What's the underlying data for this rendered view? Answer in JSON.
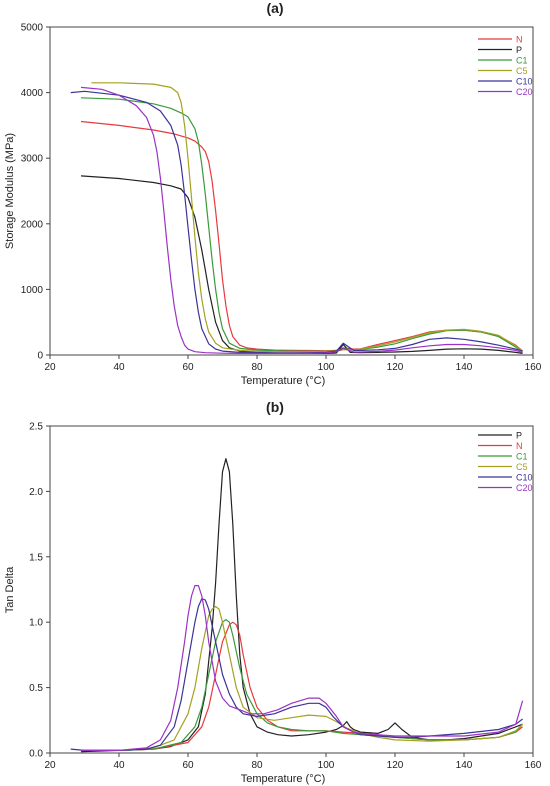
{
  "chart_data": [
    {
      "panel_label": "(a)",
      "type": "line",
      "xlabel": "Temperature (°C)",
      "ylabel": "Storage Modulus (MPa)",
      "xlim": [
        20,
        160
      ],
      "ylim": [
        0,
        5000
      ],
      "xticks": [
        20,
        40,
        60,
        80,
        100,
        120,
        140,
        160
      ],
      "yticks": [
        0,
        1000,
        2000,
        3000,
        4000,
        5000
      ],
      "grid": false,
      "legend_position": "top-right",
      "series": [
        {
          "name": "N",
          "color": "#e8393d",
          "x": [
            29,
            40,
            50,
            56,
            60,
            62,
            64,
            65,
            66,
            67,
            68,
            69,
            70,
            71,
            72,
            73,
            75,
            77,
            80,
            85,
            90,
            95,
            100,
            103,
            105,
            108,
            110,
            115,
            120,
            125,
            130,
            135,
            140,
            145,
            150,
            155,
            157
          ],
          "y": [
            3560,
            3500,
            3430,
            3370,
            3310,
            3260,
            3170,
            3100,
            2950,
            2650,
            2200,
            1700,
            1150,
            750,
            450,
            280,
            150,
            110,
            90,
            75,
            70,
            68,
            66,
            70,
            110,
            90,
            95,
            160,
            220,
            280,
            350,
            380,
            380,
            350,
            290,
            150,
            60
          ]
        },
        {
          "name": "P",
          "color": "#222222",
          "x": [
            29,
            40,
            50,
            55,
            58,
            60,
            62,
            64,
            66,
            68,
            70,
            72,
            75,
            80,
            85,
            90,
            95,
            100,
            103,
            105,
            107,
            110,
            115,
            120,
            125,
            130,
            135,
            140,
            145,
            150,
            155,
            157
          ],
          "y": [
            2730,
            2690,
            2630,
            2580,
            2530,
            2400,
            2100,
            1600,
            1000,
            500,
            220,
            110,
            60,
            40,
            30,
            25,
            25,
            25,
            30,
            160,
            40,
            35,
            40,
            45,
            55,
            70,
            90,
            95,
            90,
            70,
            40,
            25
          ]
        },
        {
          "name": "C1",
          "color": "#3a9a3a",
          "x": [
            29,
            40,
            50,
            55,
            58,
            60,
            62,
            63,
            64,
            65,
            66,
            67,
            68,
            69,
            70,
            72,
            75,
            80,
            85,
            90,
            95,
            100,
            103,
            105,
            108,
            110,
            115,
            120,
            125,
            130,
            135,
            140,
            145,
            150,
            155,
            157
          ],
          "y": [
            3920,
            3900,
            3830,
            3760,
            3690,
            3630,
            3450,
            3250,
            2900,
            2450,
            1950,
            1450,
            1000,
            650,
            400,
            180,
            100,
            75,
            65,
            60,
            58,
            58,
            62,
            100,
            80,
            85,
            120,
            170,
            250,
            320,
            370,
            380,
            350,
            280,
            120,
            55
          ]
        },
        {
          "name": "C5",
          "color": "#a5a121",
          "x": [
            32,
            40,
            50,
            55,
            57,
            58,
            59,
            60,
            61,
            62,
            63,
            64,
            65,
            66,
            68,
            70,
            75,
            80,
            85,
            90,
            95,
            100,
            103,
            105,
            108,
            110,
            115,
            120,
            125,
            130,
            135,
            140,
            145,
            150,
            155,
            157
          ],
          "y": [
            4150,
            4150,
            4130,
            4080,
            4000,
            3850,
            3500,
            3000,
            2400,
            1800,
            1250,
            850,
            550,
            350,
            180,
            110,
            70,
            55,
            50,
            50,
            50,
            55,
            60,
            80,
            80,
            90,
            140,
            200,
            270,
            340,
            380,
            390,
            360,
            300,
            140,
            60
          ]
        },
        {
          "name": "C10",
          "color": "#3b3398",
          "x": [
            26,
            30,
            40,
            48,
            52,
            55,
            57,
            58,
            59,
            60,
            61,
            62,
            63,
            64,
            66,
            68,
            70,
            75,
            80,
            85,
            90,
            95,
            100,
            103,
            105,
            108,
            110,
            115,
            120,
            125,
            130,
            135,
            140,
            145,
            150,
            155,
            157
          ],
          "y": [
            4000,
            4020,
            3960,
            3850,
            3720,
            3500,
            3200,
            2900,
            2450,
            1950,
            1450,
            1000,
            650,
            400,
            170,
            90,
            60,
            40,
            35,
            33,
            33,
            35,
            40,
            60,
            180,
            70,
            70,
            80,
            100,
            160,
            240,
            260,
            240,
            200,
            150,
            90,
            60
          ]
        },
        {
          "name": "C20",
          "color": "#9b32c6",
          "x": [
            29,
            35,
            40,
            45,
            48,
            50,
            51,
            52,
            53,
            54,
            55,
            56,
            57,
            58,
            59,
            60,
            62,
            65,
            70,
            75,
            80,
            85,
            90,
            95,
            100,
            103,
            105,
            108,
            110,
            115,
            120,
            125,
            130,
            135,
            140,
            145,
            150,
            155,
            157
          ],
          "y": [
            4080,
            4050,
            3960,
            3800,
            3620,
            3350,
            3100,
            2700,
            2200,
            1650,
            1150,
            750,
            450,
            280,
            150,
            90,
            50,
            35,
            28,
            25,
            25,
            25,
            25,
            25,
            30,
            50,
            100,
            45,
            45,
            55,
            75,
            110,
            140,
            160,
            160,
            140,
            110,
            70,
            40
          ]
        }
      ]
    },
    {
      "panel_label": "(b)",
      "type": "line",
      "xlabel": "Temperature (°C)",
      "ylabel": "Tan Delta",
      "xlim": [
        20,
        160
      ],
      "ylim": [
        0,
        2.5
      ],
      "xticks": [
        20,
        40,
        60,
        80,
        100,
        120,
        140,
        160
      ],
      "yticks": [
        0.0,
        0.5,
        1.0,
        1.5,
        2.0,
        2.5
      ],
      "grid": false,
      "legend_position": "top-right",
      "series": [
        {
          "name": "P",
          "color": "#222222",
          "x": [
            29,
            40,
            50,
            55,
            60,
            63,
            65,
            67,
            68,
            69,
            70,
            71,
            72,
            73,
            74,
            75,
            76,
            78,
            80,
            83,
            86,
            90,
            95,
            100,
            103,
            105,
            106,
            107,
            108,
            110,
            115,
            118,
            120,
            122,
            125,
            130,
            135,
            140,
            145,
            150,
            155,
            157
          ],
          "y": [
            0.01,
            0.02,
            0.03,
            0.05,
            0.1,
            0.2,
            0.45,
            0.95,
            1.3,
            1.75,
            2.15,
            2.25,
            2.15,
            1.75,
            1.2,
            0.75,
            0.5,
            0.3,
            0.2,
            0.16,
            0.14,
            0.13,
            0.14,
            0.16,
            0.18,
            0.21,
            0.24,
            0.2,
            0.18,
            0.16,
            0.15,
            0.18,
            0.23,
            0.18,
            0.12,
            0.1,
            0.1,
            0.11,
            0.13,
            0.15,
            0.2,
            0.22
          ]
        },
        {
          "name": "N",
          "color": "#e8393d",
          "x": [
            29,
            40,
            50,
            60,
            64,
            66,
            68,
            70,
            72,
            73,
            74,
            75,
            76,
            78,
            80,
            83,
            86,
            90,
            95,
            100,
            105,
            110,
            120,
            130,
            140,
            150,
            155,
            157
          ],
          "y": [
            0.02,
            0.02,
            0.03,
            0.08,
            0.2,
            0.35,
            0.6,
            0.85,
            0.98,
            1.0,
            0.98,
            0.9,
            0.75,
            0.5,
            0.35,
            0.25,
            0.2,
            0.17,
            0.17,
            0.17,
            0.16,
            0.15,
            0.12,
            0.1,
            0.1,
            0.12,
            0.16,
            0.2
          ]
        },
        {
          "name": "C1",
          "color": "#3a9a3a",
          "x": [
            29,
            40,
            50,
            58,
            62,
            64,
            66,
            68,
            70,
            71,
            72,
            73,
            75,
            77,
            80,
            83,
            86,
            90,
            95,
            100,
            105,
            110,
            120,
            130,
            140,
            150,
            155,
            157
          ],
          "y": [
            0.02,
            0.02,
            0.03,
            0.08,
            0.2,
            0.35,
            0.6,
            0.85,
            1.0,
            1.02,
            1.0,
            0.9,
            0.65,
            0.45,
            0.3,
            0.23,
            0.2,
            0.18,
            0.17,
            0.17,
            0.15,
            0.14,
            0.12,
            0.1,
            0.1,
            0.12,
            0.16,
            0.22
          ]
        },
        {
          "name": "C5",
          "color": "#a5a121",
          "x": [
            29,
            40,
            50,
            56,
            60,
            62,
            64,
            66,
            67,
            68,
            69,
            70,
            72,
            74,
            76,
            80,
            85,
            90,
            95,
            100,
            103,
            106,
            110,
            115,
            120,
            130,
            140,
            150,
            155,
            157
          ],
          "y": [
            0.02,
            0.02,
            0.04,
            0.1,
            0.3,
            0.5,
            0.8,
            1.05,
            1.1,
            1.12,
            1.1,
            1.0,
            0.75,
            0.5,
            0.35,
            0.27,
            0.25,
            0.27,
            0.29,
            0.28,
            0.24,
            0.19,
            0.15,
            0.12,
            0.1,
            0.09,
            0.1,
            0.12,
            0.17,
            0.22
          ]
        },
        {
          "name": "C10",
          "color": "#3b3398",
          "x": [
            26,
            30,
            40,
            48,
            52,
            56,
            58,
            60,
            62,
            63,
            64,
            65,
            66,
            68,
            70,
            72,
            74,
            76,
            80,
            85,
            90,
            95,
            98,
            100,
            102,
            105,
            108,
            110,
            115,
            120,
            125,
            130,
            140,
            150,
            155,
            157
          ],
          "y": [
            0.03,
            0.02,
            0.02,
            0.03,
            0.06,
            0.2,
            0.4,
            0.7,
            1.0,
            1.12,
            1.18,
            1.17,
            1.1,
            0.85,
            0.6,
            0.45,
            0.35,
            0.3,
            0.28,
            0.3,
            0.35,
            0.38,
            0.38,
            0.35,
            0.28,
            0.2,
            0.16,
            0.14,
            0.13,
            0.12,
            0.12,
            0.13,
            0.15,
            0.18,
            0.22,
            0.26
          ]
        },
        {
          "name": "C20",
          "color": "#9b32c6",
          "x": [
            29,
            40,
            48,
            52,
            55,
            57,
            59,
            60,
            61,
            62,
            63,
            64,
            65,
            66,
            68,
            70,
            72,
            75,
            78,
            82,
            86,
            90,
            95,
            98,
            100,
            103,
            105,
            108,
            110,
            115,
            120,
            130,
            140,
            150,
            155,
            157
          ],
          "y": [
            0.02,
            0.02,
            0.04,
            0.1,
            0.25,
            0.5,
            0.85,
            1.05,
            1.2,
            1.28,
            1.28,
            1.2,
            1.05,
            0.85,
            0.55,
            0.42,
            0.36,
            0.33,
            0.3,
            0.3,
            0.33,
            0.38,
            0.42,
            0.42,
            0.38,
            0.28,
            0.2,
            0.16,
            0.15,
            0.14,
            0.13,
            0.13,
            0.13,
            0.16,
            0.22,
            0.4
          ]
        }
      ]
    }
  ]
}
